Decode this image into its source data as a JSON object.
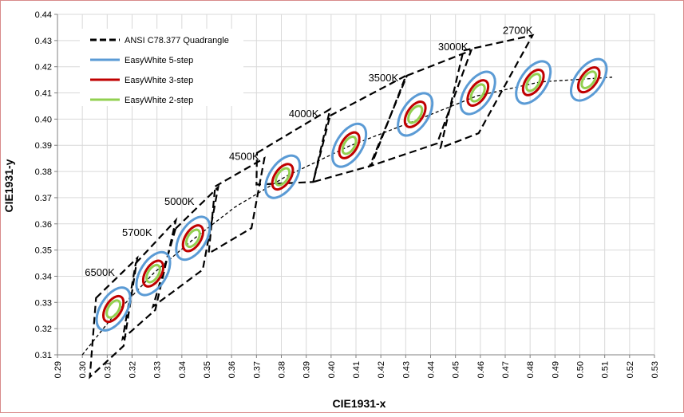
{
  "chart_data": {
    "type": "scatter",
    "xlabel": "CIE1931-x",
    "ylabel": "CIE1931-y",
    "xlim": [
      0.29,
      0.53
    ],
    "ylim": [
      0.31,
      0.44
    ],
    "xticks": [
      "0.29",
      "0.30",
      "0.31",
      "0.32",
      "0.33",
      "0.34",
      "0.35",
      "0.36",
      "0.37",
      "0.38",
      "0.39",
      "0.40",
      "0.41",
      "0.42",
      "0.43",
      "0.44",
      "0.45",
      "0.46",
      "0.47",
      "0.48",
      "0.49",
      "0.50",
      "0.51",
      "0.52",
      "0.53"
    ],
    "yticks": [
      "0.31",
      "0.32",
      "0.33",
      "0.34",
      "0.35",
      "0.36",
      "0.37",
      "0.38",
      "0.39",
      "0.40",
      "0.41",
      "0.42",
      "0.43",
      "0.44"
    ],
    "grid": true,
    "legend_position": "top-left",
    "legend": [
      {
        "label": "ANSI C78.377 Quadrangle",
        "color": "#000000",
        "style": "dashed"
      },
      {
        "label": "EasyWhite 5-step",
        "color": "#5b9bd5",
        "style": "solid"
      },
      {
        "label": "EasyWhite 3-step",
        "color": "#c00000",
        "style": "solid"
      },
      {
        "label": "EasyWhite 2-step",
        "color": "#92d050",
        "style": "solid"
      }
    ],
    "cct_labels": [
      {
        "text": "6500K",
        "x": 0.301,
        "y": 0.3402
      },
      {
        "text": "5700K",
        "x": 0.316,
        "y": 0.3553
      },
      {
        "text": "5000K",
        "x": 0.333,
        "y": 0.3673
      },
      {
        "text": "4500K",
        "x": 0.359,
        "y": 0.3844
      },
      {
        "text": "4000K",
        "x": 0.383,
        "y": 0.4008
      },
      {
        "text": "3500K",
        "x": 0.415,
        "y": 0.4144
      },
      {
        "text": "3000K",
        "x": 0.443,
        "y": 0.4263
      },
      {
        "text": "2700K",
        "x": 0.469,
        "y": 0.4325
      }
    ],
    "quadrangles": [
      {
        "cct": "6500K",
        "points": [
          [
            0.3055,
            0.3317
          ],
          [
            0.3221,
            0.347
          ],
          [
            0.3166,
            0.3134
          ],
          [
            0.303,
            0.3015
          ]
        ]
      },
      {
        "cct": "5700K",
        "points": [
          [
            0.3215,
            0.345
          ],
          [
            0.3376,
            0.3614
          ],
          [
            0.3293,
            0.3271
          ],
          [
            0.3162,
            0.3161
          ]
        ]
      },
      {
        "cct": "5000K",
        "points": [
          [
            0.3375,
            0.3582
          ],
          [
            0.3546,
            0.374
          ],
          [
            0.3484,
            0.3425
          ],
          [
            0.3284,
            0.3284
          ]
        ]
      },
      {
        "cct": "4500K",
        "points": [
          [
            0.3534,
            0.3743
          ],
          [
            0.3732,
            0.3851
          ],
          [
            0.368,
            0.3584
          ],
          [
            0.3508,
            0.3487
          ]
        ]
      },
      {
        "cct": "4000K",
        "points": [
          [
            0.3702,
            0.3871
          ],
          [
            0.3996,
            0.4038
          ],
          [
            0.3928,
            0.376
          ],
          [
            0.37,
            0.375
          ]
        ]
      },
      {
        "cct": "3500K",
        "points": [
          [
            0.3996,
            0.4013
          ],
          [
            0.4301,
            0.4166
          ],
          [
            0.4161,
            0.3822
          ],
          [
            0.3928,
            0.376
          ]
        ]
      },
      {
        "cct": "3000K",
        "points": [
          [
            0.4305,
            0.4166
          ],
          [
            0.4563,
            0.4262
          ],
          [
            0.4426,
            0.3907
          ],
          [
            0.4155,
            0.382
          ]
        ]
      },
      {
        "cct": "2700K",
        "points": [
          [
            0.4532,
            0.4262
          ],
          [
            0.481,
            0.432
          ],
          [
            0.4593,
            0.3946
          ],
          [
            0.444,
            0.389
          ]
        ]
      }
    ],
    "center_line": [
      [
        0.3,
        0.31
      ],
      [
        0.3128,
        0.3252
      ],
      [
        0.3287,
        0.3412
      ],
      [
        0.3446,
        0.3541
      ],
      [
        0.3612,
        0.3663
      ],
      [
        0.382,
        0.3782
      ],
      [
        0.4073,
        0.3897
      ],
      [
        0.437,
        0.4006
      ],
      [
        0.4588,
        0.4089
      ],
      [
        0.4841,
        0.4142
      ],
      [
        0.513,
        0.416
      ]
    ],
    "ellipse_sets": [
      {
        "cct": "6500K",
        "center": [
          0.3125,
          0.3275
        ],
        "angle": -58
      },
      {
        "cct": "5700K",
        "center": [
          0.3285,
          0.341
        ],
        "angle": -58
      },
      {
        "cct": "5000K",
        "center": [
          0.3445,
          0.3545
        ],
        "angle": -58
      },
      {
        "cct": "4000K",
        "center": [
          0.3805,
          0.378
        ],
        "angle": -56
      },
      {
        "cct": "3500K",
        "center": [
          0.4073,
          0.39
        ],
        "angle": -58
      },
      {
        "cct": "3000K",
        "center": [
          0.4338,
          0.4018
        ],
        "angle": -56
      },
      {
        "cct": "2700K",
        "center": [
          0.459,
          0.41
        ],
        "angle": -56
      },
      {
        "cct": "",
        "center": [
          0.4813,
          0.414
        ],
        "angle": -56
      },
      {
        "cct": "",
        "center": [
          0.5036,
          0.415
        ],
        "angle": -53
      }
    ],
    "ellipse_steps": [
      {
        "series": "EasyWhite 5-step",
        "color": "#5b9bd5",
        "scale": 5
      },
      {
        "series": "EasyWhite 3-step",
        "color": "#c00000",
        "scale": 3
      },
      {
        "series": "EasyWhite 2-step",
        "color": "#92d050",
        "scale": 2
      }
    ]
  }
}
